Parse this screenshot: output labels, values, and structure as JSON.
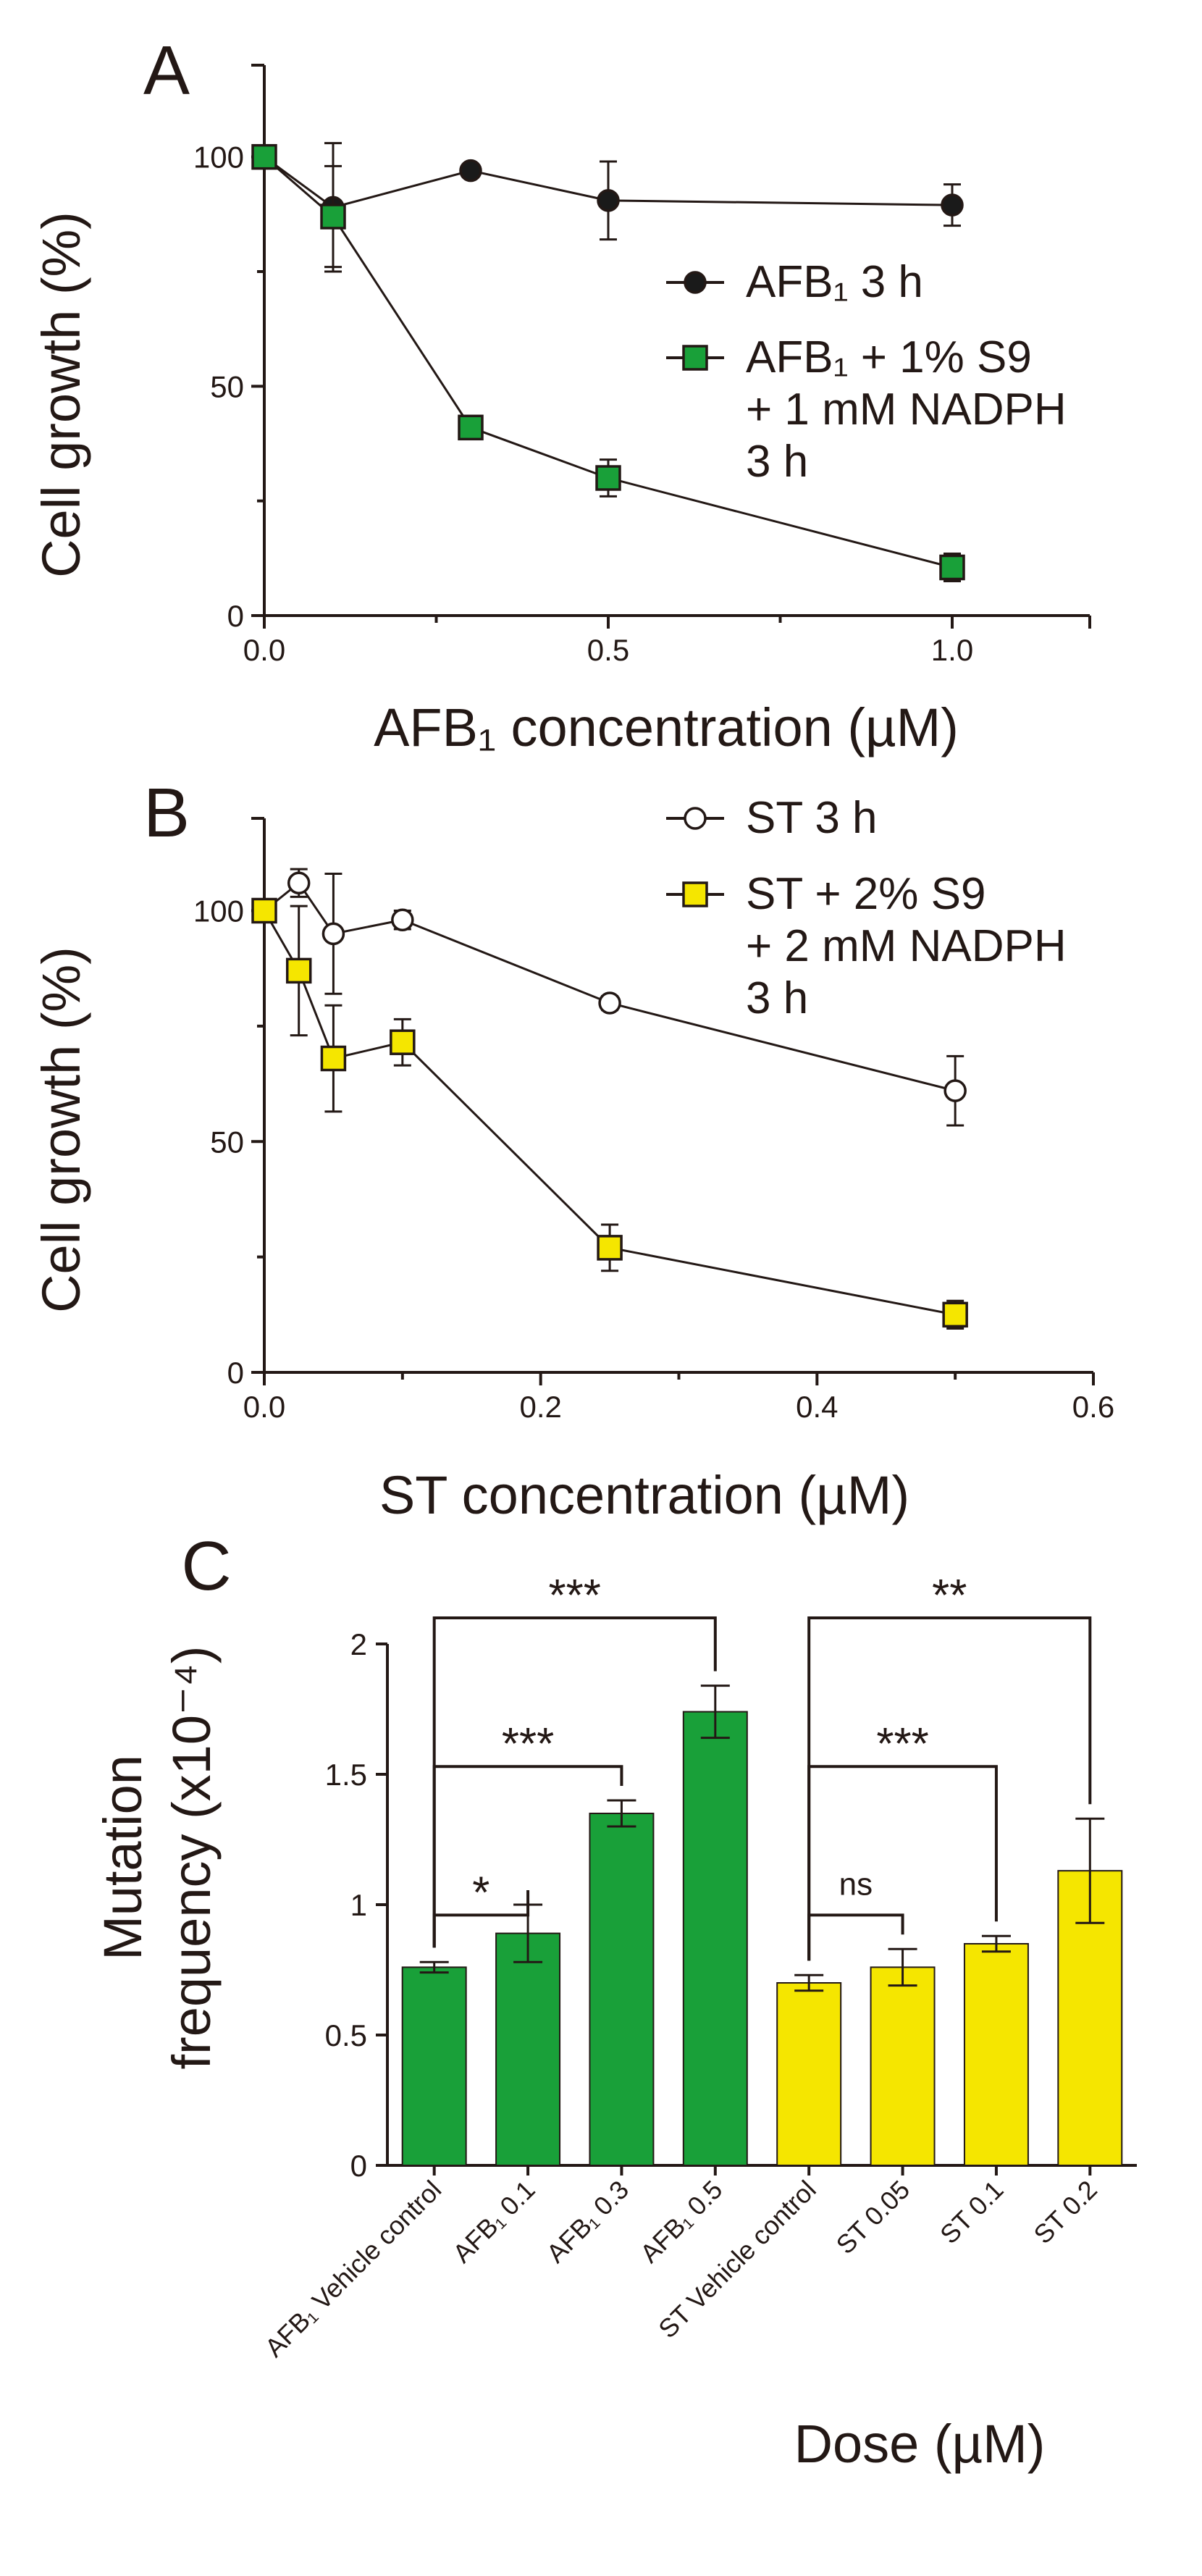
{
  "chart_data": [
    {
      "panel": "A",
      "type": "line",
      "xlabel": "AFB₁ concentration (µM)",
      "ylabel": "Cell growth (%)",
      "xlim": [
        0,
        1.2
      ],
      "ylim": [
        0,
        120
      ],
      "x_ticks": [
        "0.0",
        "0.5",
        "1.0"
      ],
      "y_ticks": [
        "0",
        "50",
        "100"
      ],
      "legend_position": "right",
      "series": [
        {
          "name": "AFB₁ 3 h",
          "legend_lines": [
            "AFB₁ 3 h"
          ],
          "marker": "circle",
          "fill": "#1a1a1a",
          "x": [
            0,
            0.1,
            0.3,
            0.5,
            1.0
          ],
          "y": [
            100,
            89,
            97,
            90.5,
            89.5
          ],
          "err": [
            0,
            14,
            0,
            8.5,
            4.5
          ]
        },
        {
          "name": "AFB₁ + 1% S9 + 1 mM NADPH 3 h",
          "legend_lines": [
            "AFB₁ + 1% S9",
            "+ 1 mM NADPH",
            "3 h"
          ],
          "marker": "square",
          "fill": "#19a039",
          "x": [
            0,
            0.1,
            0.3,
            0.5,
            1.0
          ],
          "y": [
            100,
            87,
            41,
            30,
            10.5
          ],
          "err": [
            0,
            11,
            2,
            4,
            3
          ]
        }
      ]
    },
    {
      "panel": "B",
      "type": "line",
      "xlabel": "ST concentration (µM)",
      "ylabel": "Cell growth (%)",
      "xlim": [
        0,
        0.6
      ],
      "ylim": [
        0,
        120
      ],
      "x_ticks": [
        "0.0",
        "0.2",
        "0.4",
        "0.6"
      ],
      "y_ticks": [
        "0",
        "50",
        "100"
      ],
      "legend_position": "top-right",
      "series": [
        {
          "name": "ST 3 h",
          "legend_lines": [
            "ST 3 h"
          ],
          "marker": "circle",
          "fill": "#ffffff",
          "x": [
            0,
            0.025,
            0.05,
            0.1,
            0.25,
            0.5
          ],
          "y": [
            100,
            106,
            95,
            98,
            80,
            61
          ],
          "err": [
            0,
            3,
            13,
            2,
            1.5,
            7.5
          ]
        },
        {
          "name": "ST + 2% S9 + 2 mM NADPH 3 h",
          "legend_lines": [
            "ST + 2% S9",
            "+ 2 mM NADPH",
            "3 h"
          ],
          "marker": "square",
          "fill": "#f5e600",
          "x": [
            0,
            0.025,
            0.05,
            0.1,
            0.25,
            0.5
          ],
          "y": [
            100,
            87,
            68,
            71.5,
            27,
            12.5
          ],
          "err": [
            0,
            14,
            11.5,
            5,
            5,
            3
          ]
        }
      ]
    },
    {
      "panel": "C",
      "type": "bar",
      "xlabel": "Dose (µM)",
      "ylabel_lines": [
        "Mutation",
        "frequency (x10⁻⁴)"
      ],
      "ylim": [
        0,
        2
      ],
      "y_ticks": [
        "0",
        "0.5",
        "1",
        "1.5",
        "2"
      ],
      "categories": [
        "AFB₁ Vehicle control",
        "AFB₁ 0.1",
        "AFB₁ 0.3",
        "AFB₁ 0.5",
        "ST Vehicle control",
        "ST 0.05",
        "ST 0.1",
        "ST 0.2"
      ],
      "values": [
        0.76,
        0.89,
        1.35,
        1.74,
        0.7,
        0.76,
        0.85,
        1.13
      ],
      "err": [
        0.02,
        0.11,
        0.05,
        0.1,
        0.03,
        0.07,
        0.03,
        0.2
      ],
      "colors": [
        "#19a039",
        "#19a039",
        "#19a039",
        "#19a039",
        "#f5e600",
        "#f5e600",
        "#f5e600",
        "#f5e600"
      ],
      "comparisons": [
        {
          "from": 0,
          "to": 1,
          "label": "*",
          "y": 0.96
        },
        {
          "from": 0,
          "to": 2,
          "label": "***",
          "y": 1.53
        },
        {
          "from": 0,
          "to": 3,
          "label": "***",
          "y": 2.1
        },
        {
          "from": 4,
          "to": 5,
          "label": "ns",
          "y": 0.96
        },
        {
          "from": 4,
          "to": 6,
          "label": "***",
          "y": 1.53
        },
        {
          "from": 4,
          "to": 7,
          "label": "**",
          "y": 2.1
        }
      ]
    }
  ]
}
